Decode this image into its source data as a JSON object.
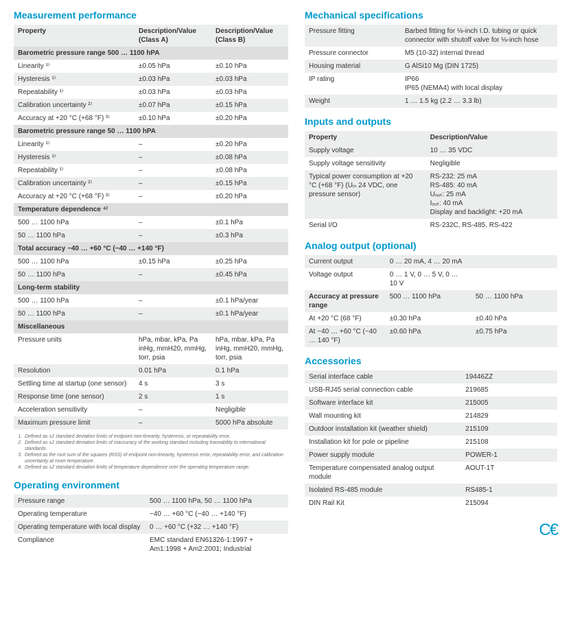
{
  "colors": {
    "heading": "#0099cc",
    "stripe": "#eceded",
    "subhead": "#dedede",
    "text": "#333333",
    "footnote": "#666666"
  },
  "fontsize": {
    "heading": 14,
    "body": 10,
    "footnote": 7
  },
  "left": {
    "measurement": {
      "title": "Measurement performance",
      "headers": [
        "Property",
        "Description/Value (Class A)",
        "Description/Value (Class B)"
      ],
      "groups": [
        {
          "subhead": "Barometric pressure range 500 … 1100 hPA",
          "rows": [
            [
              "Linearity ¹⁾",
              "±0.05 hPa",
              "±0.10 hPa"
            ],
            [
              "Hysteresis ¹⁾",
              "±0.03 hPa",
              "±0.03 hPa"
            ],
            [
              "Repeatability ¹⁾",
              "±0.03 hPa",
              "±0.03 hPa"
            ],
            [
              "Calibration uncertainty ²⁾",
              "±0.07 hPa",
              "±0.15 hPa"
            ],
            [
              "Accuracy at +20 °C (+68 °F) ³⁾",
              "±0.10 hPa",
              "±0.20 hPa"
            ]
          ]
        },
        {
          "subhead": "Barometric pressure range 50 … 1100 hPA",
          "rows": [
            [
              "Linearity ¹⁾",
              "–",
              "±0.20 hPa"
            ],
            [
              "Hysteresis ¹⁾",
              "–",
              "±0.08 hPa"
            ],
            [
              "Repeatability ¹⁾",
              "–",
              "±0.08 hPa"
            ],
            [
              "Calibration uncertainty ²⁾",
              "–",
              "±0.15 hPa"
            ],
            [
              "Accuracy at +20 °C (+68 °F) ³⁾",
              "–",
              "±0.20 hPa"
            ]
          ]
        },
        {
          "subhead": "Temperature dependence ⁴⁾",
          "rows": [
            [
              "500 … 1100 hPa",
              "–",
              "±0.1 hPa"
            ],
            [
              "50 … 1100 hPa",
              "–",
              "±0.3 hPa"
            ]
          ]
        },
        {
          "subhead": "Total accuracy −40 … +60 °C (−40 … +140 °F)",
          "rows": [
            [
              "500 … 1100 hPa",
              "±0.15 hPa",
              "±0.25 hPa"
            ],
            [
              "50 … 1100 hPa",
              "–",
              "±0.45 hPa"
            ]
          ]
        },
        {
          "subhead": "Long-term stability",
          "rows": [
            [
              "500 … 1100 hPa",
              "–",
              "±0.1 hPa/year"
            ],
            [
              "50 … 1100 hPa",
              "–",
              "±0.1 hPa/year"
            ]
          ]
        },
        {
          "subhead": "Miscellaneous",
          "rows": [
            [
              "Pressure units",
              "hPa, mbar, kPa, Pa inHg, mmH20, mmHg, torr, psia",
              "hPa, mbar, kPa, Pa inHg, mmH20, mmHg, torr, psia"
            ],
            [
              "Resolution",
              "0.01 hPa",
              "0.1 hPa"
            ],
            [
              "Settling time at startup (one sensor)",
              "4 s",
              "3 s"
            ],
            [
              "Response time (one sensor)",
              "2 s",
              "1 s"
            ],
            [
              "Acceleration sensitivity",
              "–",
              "Negligible"
            ],
            [
              "Maximum pressure limit",
              "–",
              "5000 hPa absolute"
            ]
          ]
        }
      ],
      "footnotes": [
        "Defined as ±2 standard deviation limits of endpoint non-linearity, hysteresis, or repeatability error.",
        "Defined as ±2 standard deviation limits of inaccuracy of the working standard including traceability to international standards.",
        "Defined as the root sum of the squares (RSS) of endpoint non-linearity, hysteresis error, repeatability error, and calibration uncertainty at room temperature.",
        "Defined as ±2 standard deviation limits of temperature dependence over the operating temperature range."
      ]
    },
    "operating": {
      "title": "Operating environment",
      "rows": [
        [
          "Pressure range",
          "500 … 1100 hPa, 50 … 1100 hPa"
        ],
        [
          "Operating temperature",
          "−40 … +60 °C (−40 … +140 °F)"
        ],
        [
          "Operating temperature with local display",
          "0 … +60 °C (+32 … +140 °F)"
        ],
        [
          "Compliance",
          "EMC standard EN61326-1:1997 + Am1:1998 + Am2:2001; Industrial"
        ]
      ]
    }
  },
  "right": {
    "mechanical": {
      "title": "Mechanical specifications",
      "rows": [
        [
          "Pressure fitting",
          "Barbed fitting for ⅛-inch I.D. tubing or quick connector with shutoff valve for ⅛-inch hose"
        ],
        [
          "Pressure connector",
          "M5 (10-32) internal thread"
        ],
        [
          "Housing material",
          "G AlSi10 Mg (DIN 1725)"
        ],
        [
          "IP rating",
          "IP66\nIP65 (NEMA4) with local display"
        ],
        [
          "Weight",
          "1 … 1.5 kg (2.2 … 3.3 lb)"
        ]
      ]
    },
    "io": {
      "title": "Inputs and outputs",
      "headers": [
        "Property",
        "Description/Value"
      ],
      "rows": [
        [
          "Supply voltage",
          "10 … 35 VDC"
        ],
        [
          "Supply voltage sensitivity",
          "Negligible"
        ],
        [
          "Typical power consumption at +20 °C (+68 °F) (Uᵢₙ 24 VDC, one pressure sensor)",
          "RS-232: 25 mA\nRS-485: 40 mA\nUₒᵤₜ: 25 mA\nIₒᵤₜ: 40 mA\nDisplay and backlight: +20 mA"
        ],
        [
          "Serial I/O",
          "RS-232C, RS-485, RS-422"
        ]
      ]
    },
    "analog": {
      "title": "Analog output (optional)",
      "rows": [
        [
          "Current output",
          "0 … 20 mA, 4 … 20 mA",
          ""
        ],
        [
          "Voltage output",
          "0 … 1 V, 0 … 5 V, 0 … 10 V",
          ""
        ]
      ],
      "accuracy_header": [
        "Accuracy at pressure range",
        "500 … 1100 hPa",
        "50 … 1100 hPa"
      ],
      "accuracy_rows": [
        [
          "At +20 °C (68 °F)",
          "±0.30 hPa",
          "±0.40 hPa"
        ],
        [
          "At −40 … +60 °C (−40 … 140 °F)",
          "±0.60 hPa",
          "±0.75 hPa"
        ]
      ]
    },
    "accessories": {
      "title": "Accessories",
      "rows": [
        [
          "Serial interface cable",
          "19446ZZ"
        ],
        [
          "USB-RJ45 serial connection cable",
          "219685"
        ],
        [
          "Software interface kit",
          "215005"
        ],
        [
          "Wall mounting kit",
          "214829"
        ],
        [
          "Outdoor installation kit (weather shield)",
          "215109"
        ],
        [
          "Installation kit for pole or pipeline",
          "215108"
        ],
        [
          "Power supply module",
          "POWER-1"
        ],
        [
          "Temperature compensated analog output module",
          "AOUT-1T"
        ],
        [
          "Isolated RS-485 module",
          "RS485-1"
        ],
        [
          "DIN Rail Kit",
          "215094"
        ]
      ]
    },
    "ce": "C€"
  }
}
